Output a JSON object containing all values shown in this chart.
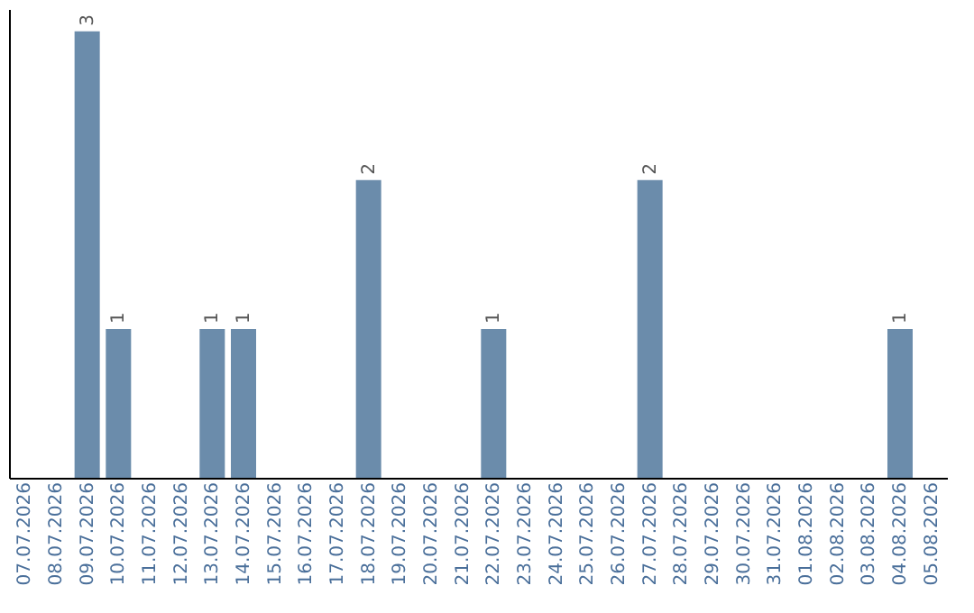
{
  "chart_data": {
    "type": "bar",
    "categories": [
      "07.07.2026",
      "08.07.2026",
      "09.07.2026",
      "10.07.2026",
      "11.07.2026",
      "12.07.2026",
      "13.07.2026",
      "14.07.2026",
      "15.07.2026",
      "16.07.2026",
      "17.07.2026",
      "18.07.2026",
      "19.07.2026",
      "20.07.2026",
      "21.07.2026",
      "22.07.2026",
      "23.07.2026",
      "24.07.2026",
      "25.07.2026",
      "26.07.2026",
      "27.07.2026",
      "28.07.2026",
      "29.07.2026",
      "30.07.2026",
      "31.07.2026",
      "01.08.2026",
      "02.08.2026",
      "03.08.2026",
      "04.08.2026",
      "05.08.2026"
    ],
    "values": [
      0,
      0,
      3,
      1,
      0,
      0,
      1,
      1,
      0,
      0,
      0,
      2,
      0,
      0,
      0,
      1,
      0,
      0,
      0,
      0,
      2,
      0,
      0,
      0,
      0,
      0,
      0,
      0,
      1,
      0
    ],
    "value_labels": [
      null,
      null,
      "3",
      "1",
      null,
      null,
      "1",
      "1",
      null,
      null,
      null,
      "2",
      null,
      null,
      null,
      "1",
      null,
      null,
      null,
      null,
      "2",
      null,
      null,
      null,
      null,
      null,
      null,
      null,
      "1",
      null
    ],
    "color": "#6b8cab"
  }
}
